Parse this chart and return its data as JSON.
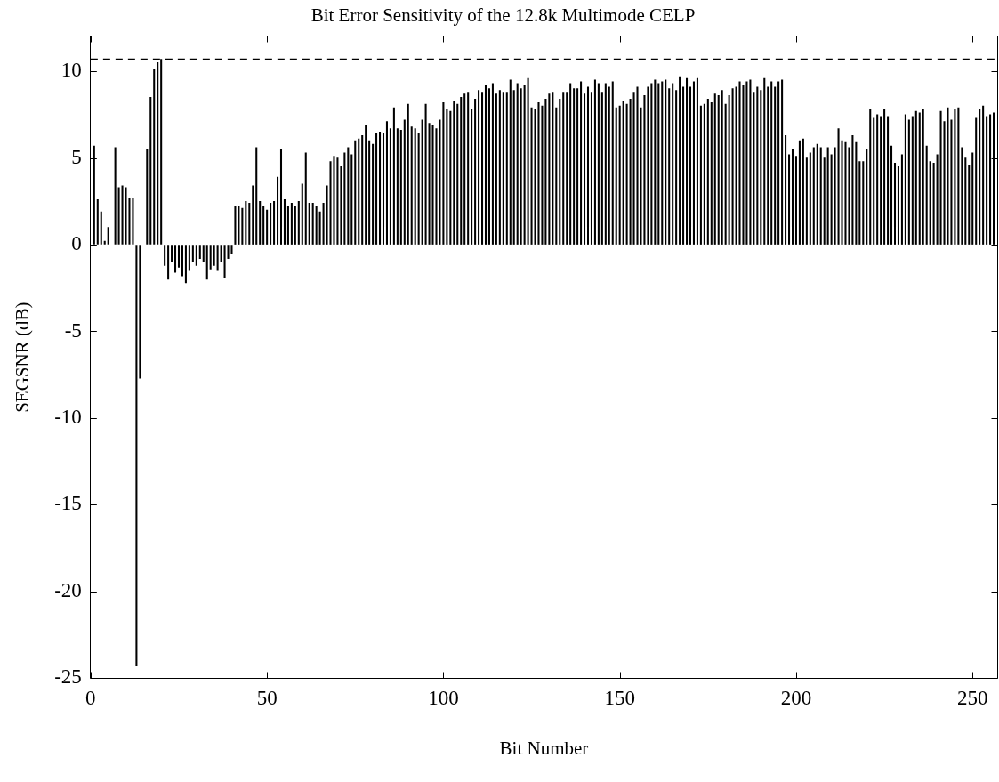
{
  "chart_data": {
    "type": "bar",
    "title": "Bit Error Sensitivity of the 12.8k Multimode CELP",
    "xlabel": "Bit Number",
    "ylabel": "SEGSNR (dB)",
    "color": "#000000",
    "x": [
      1,
      2,
      3,
      4,
      5,
      6,
      7,
      8,
      9,
      10,
      11,
      12,
      13,
      14,
      15,
      16,
      17,
      18,
      19,
      20,
      21,
      22,
      23,
      24,
      25,
      26,
      27,
      28,
      29,
      30,
      31,
      32,
      33,
      34,
      35,
      36,
      37,
      38,
      39,
      40,
      41,
      42,
      43,
      44,
      45,
      46,
      47,
      48,
      49,
      50,
      51,
      52,
      53,
      54,
      55,
      56,
      57,
      58,
      59,
      60,
      61,
      62,
      63,
      64,
      65,
      66,
      67,
      68,
      69,
      70,
      71,
      72,
      73,
      74,
      75,
      76,
      77,
      78,
      79,
      80,
      81,
      82,
      83,
      84,
      85,
      86,
      87,
      88,
      89,
      90,
      91,
      92,
      93,
      94,
      95,
      96,
      97,
      98,
      99,
      100,
      101,
      102,
      103,
      104,
      105,
      106,
      107,
      108,
      109,
      110,
      111,
      112,
      113,
      114,
      115,
      116,
      117,
      118,
      119,
      120,
      121,
      122,
      123,
      124,
      125,
      126,
      127,
      128,
      129,
      130,
      131,
      132,
      133,
      134,
      135,
      136,
      137,
      138,
      139,
      140,
      141,
      142,
      143,
      144,
      145,
      146,
      147,
      148,
      149,
      150,
      151,
      152,
      153,
      154,
      155,
      156,
      157,
      158,
      159,
      160,
      161,
      162,
      163,
      164,
      165,
      166,
      167,
      168,
      169,
      170,
      171,
      172,
      173,
      174,
      175,
      176,
      177,
      178,
      179,
      180,
      181,
      182,
      183,
      184,
      185,
      186,
      187,
      188,
      189,
      190,
      191,
      192,
      193,
      194,
      195,
      196,
      197,
      198,
      199,
      200,
      201,
      202,
      203,
      204,
      205,
      206,
      207,
      208,
      209,
      210,
      211,
      212,
      213,
      214,
      215,
      216,
      217,
      218,
      219,
      220,
      221,
      222,
      223,
      224,
      225,
      226,
      227,
      228,
      229,
      230,
      231,
      232,
      233,
      234,
      235,
      236,
      237,
      238,
      239,
      240,
      241,
      242,
      243,
      244,
      245,
      246,
      247,
      248,
      249,
      250,
      251,
      252,
      253,
      254,
      255,
      256
    ],
    "values": [
      5.7,
      2.6,
      1.9,
      0.2,
      1.0,
      null,
      5.6,
      3.3,
      3.4,
      3.3,
      2.7,
      2.7,
      -24.3,
      -7.7,
      null,
      5.5,
      8.5,
      10.1,
      10.5,
      10.7,
      -1.2,
      -2.0,
      -1.0,
      -1.6,
      -1.3,
      -1.8,
      -2.2,
      -1.5,
      -1.0,
      -1.2,
      -0.8,
      -1.0,
      -2.0,
      -1.4,
      -1.2,
      -1.5,
      -1.0,
      -1.9,
      -0.8,
      -0.5,
      2.2,
      2.2,
      2.1,
      2.5,
      2.4,
      3.4,
      5.6,
      2.5,
      2.2,
      2.0,
      2.4,
      2.5,
      3.9,
      5.5,
      2.6,
      2.2,
      2.4,
      2.2,
      2.5,
      3.5,
      5.3,
      2.4,
      2.4,
      2.2,
      1.9,
      2.4,
      3.4,
      4.8,
      5.1,
      5.0,
      4.5,
      5.3,
      5.6,
      5.2,
      6.0,
      6.1,
      6.3,
      6.9,
      6.0,
      5.8,
      6.4,
      6.5,
      6.4,
      7.1,
      6.7,
      7.9,
      6.7,
      6.6,
      7.2,
      8.1,
      6.8,
      6.7,
      6.4,
      7.2,
      8.1,
      7.0,
      6.9,
      6.7,
      7.2,
      8.2,
      7.8,
      7.7,
      8.3,
      8.1,
      8.5,
      8.7,
      8.8,
      7.8,
      8.4,
      8.9,
      8.8,
      9.2,
      9.0,
      9.3,
      8.7,
      8.9,
      8.8,
      8.8,
      9.5,
      8.9,
      9.3,
      9.0,
      9.2,
      9.6,
      7.9,
      7.8,
      8.2,
      8.0,
      8.4,
      8.7,
      8.8,
      7.9,
      8.4,
      8.8,
      8.8,
      9.3,
      9.0,
      9.0,
      9.4,
      8.7,
      9.1,
      8.8,
      9.5,
      9.3,
      8.8,
      9.3,
      9.1,
      9.4,
      7.9,
      8.0,
      8.3,
      8.1,
      8.4,
      8.8,
      9.1,
      7.9,
      8.6,
      9.1,
      9.3,
      9.5,
      9.3,
      9.4,
      9.5,
      9.0,
      9.3,
      8.9,
      9.7,
      9.1,
      9.6,
      9.1,
      9.4,
      9.6,
      8.0,
      8.1,
      8.4,
      8.2,
      8.7,
      8.6,
      8.9,
      8.1,
      8.6,
      9.0,
      9.1,
      9.4,
      9.2,
      9.4,
      9.5,
      8.8,
      9.1,
      8.9,
      9.6,
      9.1,
      9.4,
      9.1,
      9.4,
      9.5,
      6.3,
      5.2,
      5.5,
      5.1,
      6.0,
      6.1,
      5.0,
      5.3,
      5.6,
      5.8,
      5.6,
      5.0,
      5.6,
      5.2,
      5.6,
      6.7,
      6.0,
      5.9,
      5.6,
      6.3,
      5.9,
      4.8,
      4.8,
      5.5,
      7.8,
      7.3,
      7.5,
      7.4,
      7.8,
      7.4,
      5.7,
      4.7,
      4.5,
      5.2,
      7.5,
      7.2,
      7.4,
      7.7,
      7.6,
      7.8,
      5.7,
      4.8,
      4.7,
      5.2,
      7.7,
      7.1,
      7.9,
      7.2,
      7.8,
      7.9,
      5.6,
      5.0,
      4.6,
      5.3,
      7.3,
      7.8,
      8.0,
      7.4,
      7.5,
      7.6
    ],
    "xlim": [
      0,
      257
    ],
    "xticks": [
      0,
      50,
      100,
      150,
      200,
      250
    ],
    "ylim": [
      -25,
      12
    ],
    "yticks": [
      -25,
      -20,
      -15,
      -10,
      -5,
      0,
      5,
      10
    ],
    "ref_lines": [
      {
        "axis": "y",
        "value": 10.7,
        "line_style": "dashed",
        "color": "#000000"
      }
    ]
  }
}
